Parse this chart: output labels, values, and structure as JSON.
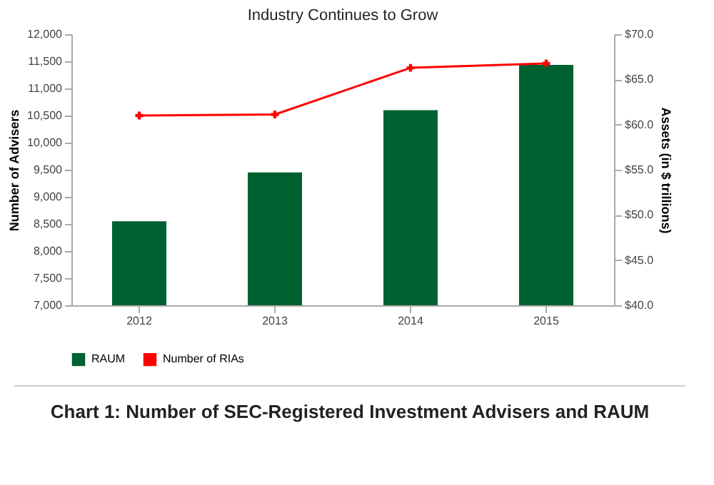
{
  "chart_data": {
    "type": "bar",
    "title": "Industry Continues to Grow",
    "categories": [
      "2012",
      "2013",
      "2014",
      "2015"
    ],
    "series": [
      {
        "name": "RAUM",
        "type": "bar",
        "axis": "y2",
        "color": "#006130",
        "values": [
          49.3,
          54.7,
          61.6,
          66.6
        ]
      },
      {
        "name": "Number of RIAs",
        "type": "line",
        "color": "#ff0000",
        "values": [
          10500,
          10520,
          11380,
          11460
        ]
      }
    ],
    "ylabel": "Number of Advisers",
    "y2label": "Assets (in $ trillions)",
    "ylim": [
      7000,
      12000
    ],
    "yticks": [
      {
        "value": 7000,
        "label": "7,000"
      },
      {
        "value": 7500,
        "label": "7,500"
      },
      {
        "value": 8000,
        "label": "8,000"
      },
      {
        "value": 8500,
        "label": "8,500"
      },
      {
        "value": 9000,
        "label": "9,000"
      },
      {
        "value": 9500,
        "label": "9,500"
      },
      {
        "value": 10000,
        "label": "10,000"
      },
      {
        "value": 10500,
        "label": "10,500"
      },
      {
        "value": 11000,
        "label": "11,000"
      },
      {
        "value": 11500,
        "label": "11,500"
      },
      {
        "value": 12000,
        "label": "12,000"
      }
    ],
    "y2lim": [
      40,
      70
    ],
    "y2ticks": [
      {
        "value": 40,
        "label": "$40.0"
      },
      {
        "value": 45,
        "label": "$45.0"
      },
      {
        "value": 50,
        "label": "$50.0"
      },
      {
        "value": 55,
        "label": "$55.0"
      },
      {
        "value": 60,
        "label": "$60.0"
      },
      {
        "value": 65,
        "label": "$65.0"
      },
      {
        "value": 70,
        "label": "$70.0"
      }
    ],
    "marker": "cross",
    "legend": "bottom",
    "grid": false,
    "annotations": [
      "Chart 1: Number of SEC-Registered Investment Advisers and RAUM"
    ]
  }
}
